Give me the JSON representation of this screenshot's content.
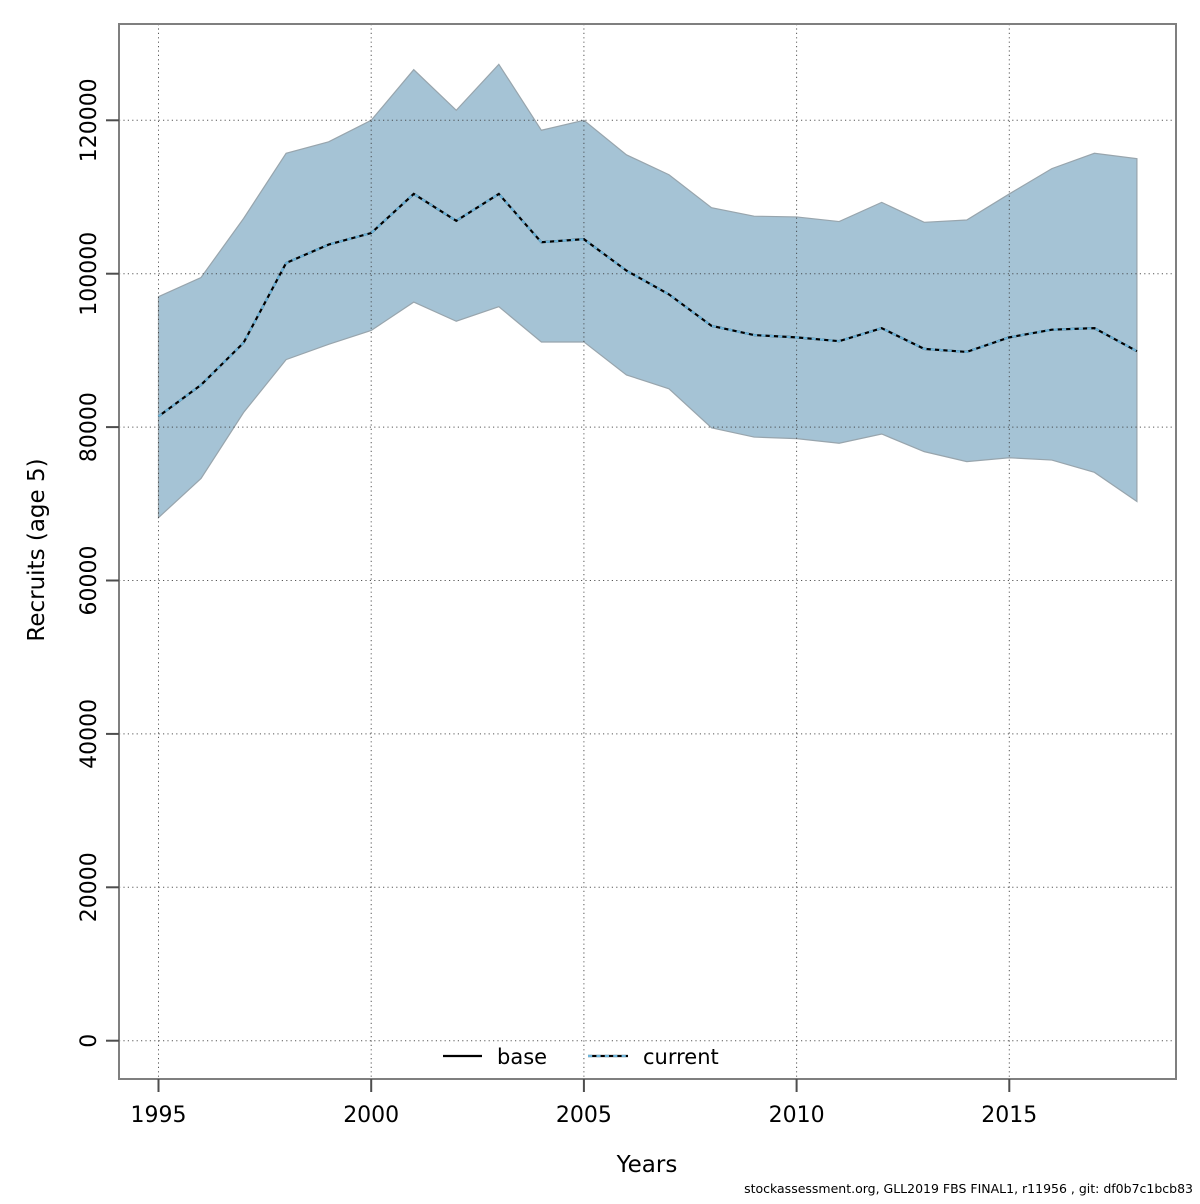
{
  "figure": {
    "footer_credit": "stockassessment.org, GLL2019 FBS FINAL1, r11956 , git: df0b7c1bcb83"
  },
  "axes": {
    "x_title": "Years",
    "y_title": "Recruits (age 5)",
    "x_tick_labels": [
      "1995",
      "2000",
      "2005",
      "2010",
      "2015"
    ],
    "y_tick_labels": [
      "0",
      "20000",
      "40000",
      "60000",
      "80000",
      "100000",
      "120000"
    ]
  },
  "legend": {
    "items": [
      {
        "label": "base",
        "style": "solid-black"
      },
      {
        "label": "current",
        "style": "dotted-blue"
      }
    ]
  },
  "colors": {
    "band_fill": "#a5c3d5",
    "band_edge": "#98a5ad",
    "base_line": "#000000",
    "current_line": "#6db4da",
    "grid": "#3a3a3a",
    "border": "#7f7f7f",
    "tick": "#4d4d4d"
  },
  "chart_data": {
    "type": "area",
    "title": "",
    "xlabel": "Years",
    "ylabel": "Recruits (age 5)",
    "grid": true,
    "legend_position": "bottom-center-inside",
    "xlim": [
      1994.1,
      2018.9
    ],
    "ylim": [
      -4900,
      132300
    ],
    "x_ticks": [
      1995,
      2000,
      2005,
      2010,
      2015
    ],
    "y_ticks": [
      0,
      20000,
      40000,
      60000,
      80000,
      100000,
      120000
    ],
    "x": [
      1995,
      1996,
      1997,
      1998,
      1999,
      2000,
      2001,
      2002,
      2003,
      2004,
      2005,
      2006,
      2007,
      2008,
      2009,
      2010,
      2011,
      2012,
      2013,
      2014,
      2015,
      2016,
      2017,
      2018
    ],
    "band": {
      "upper": [
        97000,
        99500,
        107200,
        115700,
        117200,
        120000,
        126600,
        121300,
        127300,
        118700,
        120000,
        115500,
        112900,
        108600,
        107500,
        107400,
        106800,
        109300,
        106700,
        107000,
        110400,
        113700,
        115700,
        115000
      ],
      "lower": [
        68200,
        73300,
        81900,
        88800,
        90800,
        92600,
        96300,
        93800,
        95700,
        91100,
        91100,
        86800,
        85000,
        79900,
        78700,
        78500,
        77900,
        79100,
        76800,
        75500,
        76000,
        75700,
        74100,
        70300
      ]
    },
    "series": [
      {
        "name": "base",
        "values": [
          81400,
          85500,
          91000,
          101400,
          103800,
          105300,
          110400,
          106900,
          110400,
          104100,
          104500,
          100400,
          97300,
          93200,
          92000,
          91700,
          91200,
          92900,
          90200,
          89800,
          91700,
          92700,
          92900,
          89900
        ]
      },
      {
        "name": "current",
        "values": [
          81400,
          85500,
          91000,
          101400,
          103800,
          105300,
          110400,
          106900,
          110400,
          104100,
          104500,
          100400,
          97300,
          93200,
          92000,
          91700,
          91200,
          92900,
          90200,
          89800,
          91700,
          92700,
          92900,
          89900
        ]
      }
    ]
  }
}
